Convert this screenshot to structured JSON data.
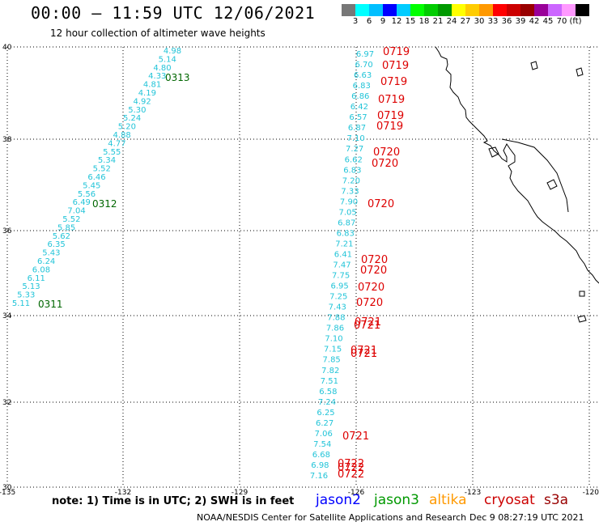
{
  "header": {
    "title": "00:00 — 11:59 UTC 12/06/2021",
    "subtitle": "12 hour collection of altimeter wave heights"
  },
  "legend": {
    "colors": [
      "#777777",
      "#00ffff",
      "#00bfff",
      "#0000ff",
      "#00ccff",
      "#00ff00",
      "#00cc00",
      "#009900",
      "#ffff00",
      "#ffcc00",
      "#ff9900",
      "#ff0000",
      "#cc0000",
      "#990000",
      "#990099",
      "#cc66ff",
      "#ff99ff",
      "#000000"
    ],
    "labels": [
      "3",
      "6",
      "9",
      "12",
      "15",
      "18",
      "21",
      "24",
      "27",
      "30",
      "33",
      "36",
      "39",
      "42",
      "45",
      "70",
      "(ft)"
    ]
  },
  "map": {
    "lon_labels": [
      "-135",
      "-132",
      "-129",
      "-126",
      "-123",
      "-120"
    ],
    "lat_labels": [
      "40",
      "38",
      "36",
      "34",
      "32",
      "30"
    ]
  },
  "footer": {
    "note": "note:  1) Time is in UTC;  2) SWH is in feet",
    "missions": [
      {
        "name": "jason2",
        "color": "#0000ff"
      },
      {
        "name": "jason3",
        "color": "#009900"
      },
      {
        "name": "altika",
        "color": "#ff9900"
      },
      {
        "name": "cryosat",
        "color": "#cc0000"
      },
      {
        "name": "s3a",
        "color": "#990000"
      }
    ],
    "credit": "NOAA/NESDIS Center for Satellite Applications and Research",
    "timestamp": "Dec  9 08:27:19 UTC 2021"
  },
  "tracks": {
    "west_heights": [
      "4.98",
      "5.14",
      "4.80",
      "4.33",
      "4.81",
      "4.19",
      "4.92",
      "5.30",
      "5.24",
      "5.20",
      "4.88",
      "4.77",
      "5.55",
      "5.34",
      "5.52",
      "6.46",
      "5.45",
      "5.56",
      "6.49",
      "7.04",
      "5.52",
      "5.85",
      "5.62",
      "6.35",
      "5.43",
      "6.24",
      "6.08",
      "6.11",
      "5.13",
      "5.33",
      "5.11"
    ],
    "west_times": [
      {
        "text": "0313",
        "color": "#006600"
      },
      {
        "text": "0312",
        "color": "#006600"
      },
      {
        "text": "0311",
        "color": "#006600"
      }
    ],
    "east_heights": [
      "6.97",
      "6.70",
      "6.63",
      "6.83",
      "6.86",
      "6.42",
      "6.57",
      "6.87",
      "7.10",
      "7.27",
      "6.62",
      "6.83",
      "7.20",
      "7.33",
      "7.90",
      "7.05",
      "6.87",
      "6.83",
      "7.21",
      "6.41",
      "7.47",
      "7.75",
      "6.95",
      "7.25",
      "7.43",
      "7.88",
      "7.86",
      "7.10",
      "7.15",
      "7.85",
      "7.82",
      "7.51",
      "6.58",
      "7.24",
      "6.25",
      "6.27",
      "7.06",
      "7.54",
      "6.68",
      "6.98",
      "7.16"
    ],
    "east_times": [
      "0719",
      "0719",
      "0719",
      "0719",
      "0719",
      "0719",
      "0720",
      "0720",
      "0720",
      "0720",
      "0720",
      "0720",
      "0720",
      "0721",
      "0721",
      "0721",
      "0721",
      "0721",
      "0722",
      "0722",
      "0722"
    ]
  }
}
